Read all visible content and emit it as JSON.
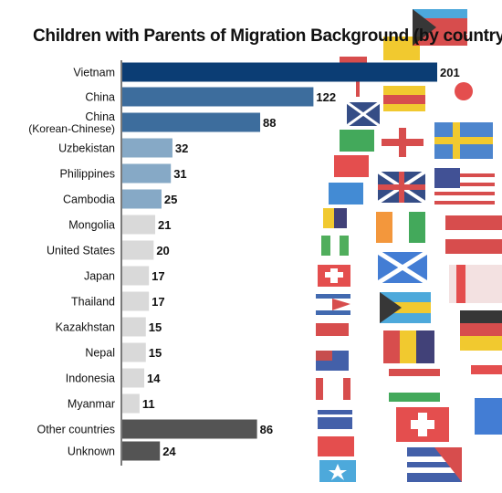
{
  "title": "Children with Parents of Migration Background (by country)",
  "colors": {
    "top1": "#0b3d74",
    "top2": "#3d6d9d",
    "mid": "#86a9c6",
    "light": "#d9d9d9",
    "dark": "#545454",
    "background": "#ffffff"
  },
  "chart_data": {
    "type": "bar",
    "orientation": "horizontal",
    "title": "Children with Parents of Migration Background (by country)",
    "xlim": [
      0,
      201
    ],
    "grid": false,
    "categories": [
      {
        "label": "Vietnam",
        "value": 201,
        "color": "top1"
      },
      {
        "label": "China",
        "value": 122,
        "color": "top2"
      },
      {
        "label": "China\n(Korean-Chinese)",
        "value": 88,
        "color": "top2"
      },
      {
        "label": "Uzbekistan",
        "value": 32,
        "color": "mid"
      },
      {
        "label": "Philippines",
        "value": 31,
        "color": "mid"
      },
      {
        "label": "Cambodia",
        "value": 25,
        "color": "mid"
      },
      {
        "label": "Mongolia",
        "value": 21,
        "color": "light"
      },
      {
        "label": "United States",
        "value": 20,
        "color": "light"
      },
      {
        "label": "Japan",
        "value": 17,
        "color": "light"
      },
      {
        "label": "Thailand",
        "value": 17,
        "color": "light"
      },
      {
        "label": "Kazakhstan",
        "value": 15,
        "color": "light"
      },
      {
        "label": "Nepal",
        "value": 15,
        "color": "light"
      },
      {
        "label": "Indonesia",
        "value": 14,
        "color": "light"
      },
      {
        "label": "Myanmar",
        "value": 11,
        "color": "light"
      },
      {
        "label": "Other countries",
        "value": 86,
        "color": "dark"
      },
      {
        "label": "Unknown",
        "value": 24,
        "color": "dark"
      }
    ]
  }
}
